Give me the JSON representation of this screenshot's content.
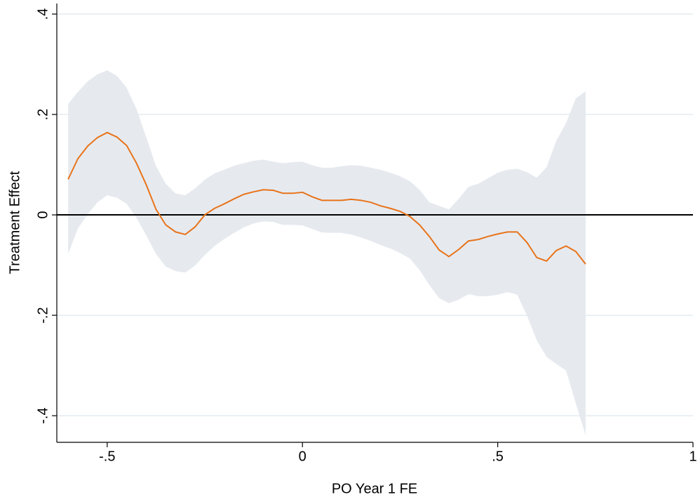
{
  "chart_data": {
    "type": "line",
    "x_label": "PO Year 1 FE",
    "y_label": "Treatment Effect",
    "x": [
      -0.6,
      -0.575,
      -0.55,
      -0.525,
      -0.5,
      -0.475,
      -0.45,
      -0.425,
      -0.4,
      -0.375,
      -0.35,
      -0.325,
      -0.3,
      -0.275,
      -0.25,
      -0.225,
      -0.2,
      -0.175,
      -0.15,
      -0.125,
      -0.1,
      -0.075,
      -0.05,
      -0.025,
      0,
      0.025,
      0.05,
      0.075,
      0.1,
      0.125,
      0.15,
      0.175,
      0.2,
      0.225,
      0.25,
      0.275,
      0.3,
      0.325,
      0.35,
      0.375,
      0.4,
      0.425,
      0.45,
      0.475,
      0.5,
      0.525,
      0.55,
      0.575,
      0.6,
      0.625,
      0.65,
      0.675,
      0.7,
      0.725
    ],
    "series": [
      {
        "color": "#e8731a",
        "values": [
          0.071,
          0.112,
          0.137,
          0.154,
          0.164,
          0.155,
          0.138,
          0.103,
          0.06,
          0.011,
          -0.02,
          -0.034,
          -0.039,
          -0.024,
          0,
          0.013,
          0.022,
          0.032,
          0.041,
          0.046,
          0.05,
          0.049,
          0.043,
          0.043,
          0.045,
          0.036,
          0.029,
          0.029,
          0.029,
          0.031,
          0.029,
          0.025,
          0.018,
          0.013,
          0.007,
          -0.003,
          -0.02,
          -0.043,
          -0.07,
          -0.083,
          -0.069,
          -0.052,
          -0.049,
          -0.043,
          -0.038,
          -0.034,
          -0.034,
          -0.055,
          -0.085,
          -0.092,
          -0.071,
          -0.062,
          -0.073,
          -0.098
        ]
      }
    ],
    "band": {
      "color": "#e6eaef",
      "upper": [
        0.221,
        0.245,
        0.266,
        0.28,
        0.288,
        0.277,
        0.253,
        0.211,
        0.155,
        0.097,
        0.062,
        0.043,
        0.039,
        0.053,
        0.07,
        0.083,
        0.09,
        0.098,
        0.103,
        0.108,
        0.11,
        0.106,
        0.103,
        0.105,
        0.106,
        0.099,
        0.094,
        0.094,
        0.097,
        0.099,
        0.098,
        0.094,
        0.09,
        0.084,
        0.077,
        0.067,
        0.05,
        0.025,
        0.018,
        0.011,
        0.032,
        0.056,
        0.062,
        0.073,
        0.084,
        0.09,
        0.092,
        0.085,
        0.074,
        0.095,
        0.148,
        0.183,
        0.232,
        0.246
      ],
      "lower": [
        -0.078,
        -0.027,
        0.001,
        0.025,
        0.039,
        0.034,
        0.022,
        -0.006,
        -0.041,
        -0.078,
        -0.103,
        -0.112,
        -0.115,
        -0.101,
        -0.08,
        -0.062,
        -0.048,
        -0.036,
        -0.025,
        -0.017,
        -0.013,
        -0.014,
        -0.02,
        -0.02,
        -0.021,
        -0.028,
        -0.035,
        -0.036,
        -0.036,
        -0.039,
        -0.045,
        -0.052,
        -0.06,
        -0.067,
        -0.076,
        -0.087,
        -0.11,
        -0.14,
        -0.166,
        -0.176,
        -0.169,
        -0.158,
        -0.162,
        -0.162,
        -0.159,
        -0.154,
        -0.159,
        -0.201,
        -0.25,
        -0.283,
        -0.297,
        -0.31,
        -0.376,
        -0.439
      ]
    },
    "yline": 0,
    "xlim": [
      -0.629,
      1.0
    ],
    "ylim": [
      -0.453,
      0.421
    ],
    "xticks": [
      {
        "value": -0.5,
        "label": "-.5"
      },
      0,
      {
        "value": 0.5,
        "label": ".5"
      },
      1
    ],
    "yticks": [
      {
        "value": -0.4,
        "label": "-.4"
      },
      {
        "value": -0.2,
        "label": "-.2"
      },
      0,
      {
        "value": 0.2,
        "label": ".2"
      },
      {
        "value": 0.4,
        "label": ".4"
      }
    ],
    "grid": true,
    "grid_color": "#e3ebef"
  }
}
